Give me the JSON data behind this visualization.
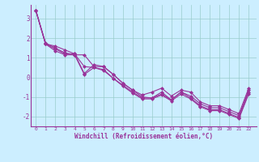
{
  "xlabel": "Windchill (Refroidissement éolien,°C)",
  "background_color": "#cceeff",
  "grid_color": "#99cccc",
  "line_color": "#993399",
  "xmin": 0,
  "xmax": 23,
  "ymin": -2.5,
  "ymax": 3.7,
  "yticks": [
    -2,
    -1,
    0,
    1,
    2,
    3
  ],
  "series": [
    [
      3.4,
      1.7,
      1.6,
      1.4,
      1.2,
      0.2,
      0.65,
      0.55,
      0.15,
      -0.3,
      -0.65,
      -1.0,
      -1.05,
      -0.75,
      -1.15,
      -0.75,
      -0.95,
      -1.35,
      -1.55,
      -1.55,
      -1.75,
      -1.95,
      -0.65
    ],
    [
      3.4,
      1.75,
      1.5,
      1.25,
      1.15,
      1.15,
      0.55,
      0.55,
      0.15,
      -0.3,
      -0.65,
      -0.9,
      -0.75,
      -0.55,
      -0.95,
      -0.65,
      -0.75,
      -1.25,
      -1.45,
      -1.45,
      -1.65,
      -1.85,
      -0.55
    ],
    [
      3.4,
      1.7,
      1.45,
      1.2,
      1.2,
      0.55,
      0.5,
      0.4,
      -0.05,
      -0.4,
      -0.75,
      -1.05,
      -1.05,
      -0.85,
      -1.15,
      -0.75,
      -1.05,
      -1.45,
      -1.65,
      -1.65,
      -1.85,
      -2.05,
      -0.75
    ],
    [
      3.4,
      1.7,
      1.35,
      1.15,
      1.15,
      0.15,
      0.5,
      0.35,
      -0.05,
      -0.45,
      -0.8,
      -1.1,
      -1.1,
      -0.9,
      -1.2,
      -0.85,
      -1.1,
      -1.5,
      -1.7,
      -1.7,
      -1.9,
      -2.1,
      -0.85
    ]
  ]
}
